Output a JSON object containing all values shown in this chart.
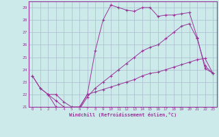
{
  "xlabel": "Windchill (Refroidissement éolien,°C)",
  "background_color": "#cceaea",
  "grid_color": "#aabbcc",
  "line_color": "#993399",
  "xlim": [
    -0.5,
    23.5
  ],
  "ylim": [
    21,
    29.5
  ],
  "xticks": [
    0,
    1,
    2,
    3,
    4,
    5,
    6,
    7,
    8,
    9,
    10,
    11,
    12,
    13,
    14,
    15,
    16,
    17,
    18,
    19,
    20,
    21,
    22,
    23
  ],
  "yticks": [
    21,
    22,
    23,
    24,
    25,
    26,
    27,
    28,
    29
  ],
  "series1_x": [
    0,
    1,
    2,
    3,
    4,
    5,
    6,
    7,
    8,
    9,
    10,
    11,
    12,
    13,
    14,
    15,
    16,
    17,
    18,
    19,
    20,
    21,
    22,
    23
  ],
  "series1_y": [
    23.5,
    22.5,
    22.0,
    21.0,
    20.9,
    20.8,
    20.9,
    22.0,
    25.5,
    28.0,
    29.2,
    29.0,
    28.8,
    28.7,
    29.0,
    29.0,
    28.3,
    28.4,
    28.4,
    28.5,
    28.6,
    26.6,
    24.1,
    23.7
  ],
  "series2_x": [
    0,
    1,
    2,
    3,
    4,
    5,
    6,
    7,
    8,
    9,
    10,
    11,
    12,
    13,
    14,
    15,
    16,
    17,
    18,
    19,
    20,
    21,
    22,
    23
  ],
  "series2_y": [
    23.5,
    22.5,
    22.0,
    21.5,
    21.0,
    20.8,
    20.8,
    21.8,
    22.5,
    23.0,
    23.5,
    24.0,
    24.5,
    25.0,
    25.5,
    25.8,
    26.0,
    26.5,
    27.0,
    27.5,
    27.7,
    26.5,
    24.3,
    23.7
  ],
  "series3_x": [
    2,
    3,
    4,
    5,
    6,
    7,
    8,
    9,
    10,
    11,
    12,
    13,
    14,
    15,
    16,
    17,
    18,
    19,
    20,
    21,
    22,
    23
  ],
  "series3_y": [
    22.0,
    22.0,
    21.4,
    21.0,
    21.0,
    22.0,
    22.2,
    22.4,
    22.6,
    22.8,
    23.0,
    23.2,
    23.5,
    23.7,
    23.8,
    24.0,
    24.2,
    24.4,
    24.6,
    24.8,
    24.9,
    23.7
  ]
}
